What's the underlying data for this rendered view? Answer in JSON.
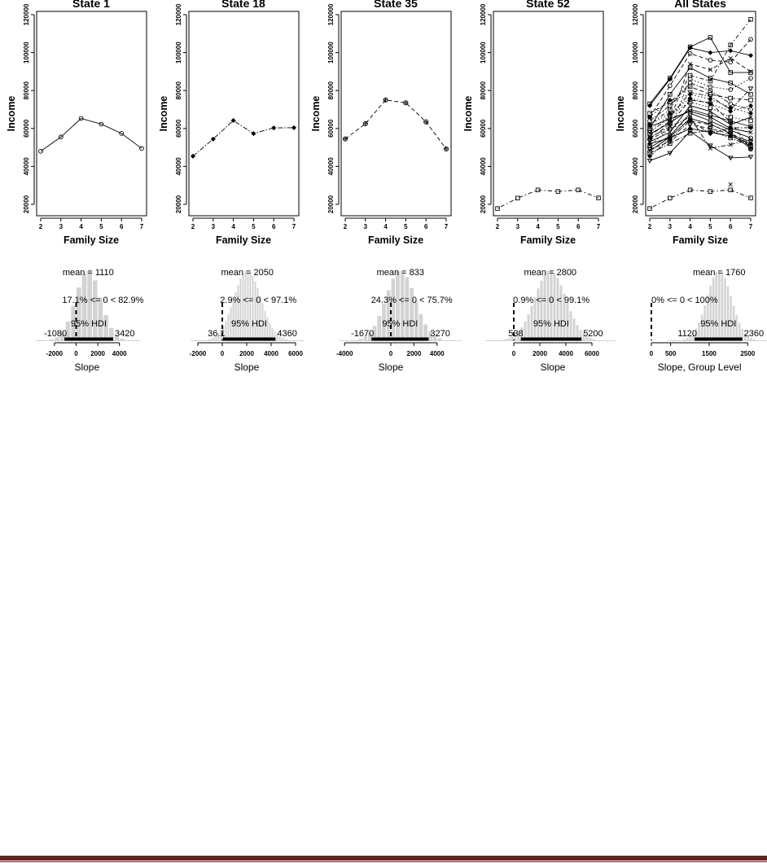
{
  "chart_data": [
    {
      "type": "line",
      "title": "State 1",
      "xlabel": "Family Size",
      "ylabel": "Income",
      "x": [
        2,
        3,
        4,
        5,
        6,
        7
      ],
      "xticks": [
        "2",
        "3",
        "4",
        "5",
        "6",
        "7"
      ],
      "yticks": [
        "20000",
        "40000",
        "60000",
        "80000",
        "100000",
        "120000"
      ],
      "ylim": [
        13000,
        122000
      ],
      "marker": "circle",
      "dash": "solid",
      "values": [
        48000,
        55500,
        65300,
        62300,
        57400,
        49500
      ]
    },
    {
      "type": "line",
      "title": "State 18",
      "xlabel": "Family Size",
      "ylabel": "Income",
      "x": [
        2,
        3,
        4,
        5,
        6,
        7
      ],
      "xticks": [
        "2",
        "3",
        "4",
        "5",
        "6",
        "7"
      ],
      "yticks": [
        "20000",
        "40000",
        "60000",
        "80000",
        "100000",
        "120000"
      ],
      "ylim": [
        13000,
        122000
      ],
      "marker": "diamond",
      "dash": "dashdot",
      "values": [
        45400,
        54400,
        64200,
        57300,
        60300,
        60400
      ]
    },
    {
      "type": "line",
      "title": "State 35",
      "xlabel": "Family Size",
      "ylabel": "Income",
      "x": [
        2,
        3,
        4,
        5,
        6,
        7
      ],
      "xticks": [
        "2",
        "3",
        "4",
        "5",
        "6",
        "7"
      ],
      "yticks": [
        "20000",
        "40000",
        "60000",
        "80000",
        "100000",
        "120000"
      ],
      "ylim": [
        13000,
        122000
      ],
      "marker": "crosscircle",
      "dash": "dashed",
      "values": [
        54500,
        62500,
        75000,
        73500,
        63500,
        49200
      ]
    },
    {
      "type": "line",
      "title": "State 52",
      "xlabel": "Family Size",
      "ylabel": "Income",
      "x": [
        2,
        3,
        4,
        5,
        6,
        7
      ],
      "xticks": [
        "2",
        "3",
        "4",
        "5",
        "6",
        "7"
      ],
      "yticks": [
        "20000",
        "40000",
        "60000",
        "80000",
        "100000",
        "120000"
      ],
      "ylim": [
        13000,
        122000
      ],
      "marker": "square",
      "dash": "dotdash",
      "values": [
        17800,
        23300,
        27600,
        26800,
        27600,
        23400
      ]
    },
    {
      "type": "line",
      "title": "All States",
      "xlabel": "Family Size",
      "ylabel": "Income",
      "x": [
        2,
        3,
        4,
        5,
        6,
        7
      ],
      "xticks": [
        "2",
        "3",
        "4",
        "5",
        "6",
        "7"
      ],
      "yticks": [
        "20000",
        "40000",
        "60000",
        "80000",
        "100000",
        "120000"
      ],
      "ylim": [
        13000,
        122000
      ],
      "series": [
        {
          "marker": "circle",
          "dash": "solid",
          "values": [
            48000,
            55500,
            65300,
            62300,
            57400,
            49500
          ]
        },
        {
          "marker": "diamond",
          "dash": "dashdot",
          "values": [
            45400,
            54400,
            64200,
            57300,
            60300,
            60400
          ]
        },
        {
          "marker": "crosscircle",
          "dash": "dashed",
          "values": [
            54500,
            62500,
            75000,
            73500,
            63500,
            49200
          ]
        },
        {
          "marker": "square",
          "dash": "dotdash",
          "values": [
            17800,
            23300,
            27600,
            26800,
            27600,
            23400
          ]
        },
        {
          "marker": "square",
          "dash": "solid",
          "values": [
            73000,
            86500,
            103000,
            108000,
            89500,
            89500
          ]
        },
        {
          "marker": "diamond",
          "dash": "solid",
          "values": [
            72000,
            86000,
            102500,
            100000,
            101000,
            98500
          ]
        },
        {
          "marker": "triangle",
          "dash": "solid",
          "values": [
            43000,
            47000,
            58500,
            51000,
            44500,
            45000
          ]
        },
        {
          "marker": "square",
          "dash": "dotdash",
          "values": [
            62000,
            70000,
            88000,
            85000,
            104000,
            117500
          ]
        },
        {
          "marker": "circle",
          "dash": "dashed",
          "values": [
            66000,
            82500,
            99500,
            96000,
            95000,
            107000
          ]
        },
        {
          "marker": "cross",
          "dash": "dashed",
          "values": [
            56000,
            64000,
            94000,
            91000,
            97000,
            90000
          ]
        },
        {
          "marker": "square",
          "dash": "solid",
          "values": [
            60000,
            78000,
            92000,
            86500,
            84000,
            78000
          ]
        },
        {
          "marker": "circle",
          "dash": "dotted",
          "values": [
            51000,
            60000,
            86000,
            82000,
            80500,
            86500
          ]
        },
        {
          "marker": "triangle",
          "dash": "dashdot",
          "values": [
            58000,
            66000,
            79000,
            77000,
            70000,
            81000
          ]
        },
        {
          "marker": "cross",
          "dash": "solid",
          "values": [
            53000,
            58000,
            72000,
            69000,
            62000,
            66000
          ]
        },
        {
          "marker": "square",
          "dash": "dashed",
          "values": [
            68000,
            74000,
            82000,
            78000,
            76000,
            75000
          ]
        },
        {
          "marker": "circle",
          "dash": "solid",
          "values": [
            50000,
            56000,
            68000,
            64000,
            59000,
            55000
          ]
        },
        {
          "marker": "diamond",
          "dash": "dotted",
          "values": [
            62000,
            68000,
            76000,
            73000,
            69000,
            72000
          ]
        },
        {
          "marker": "cross",
          "dash": "dashdot",
          "values": [
            55000,
            61000,
            66000,
            49500,
            51500,
            54000
          ]
        },
        {
          "marker": "square",
          "dash": "solid",
          "values": [
            57000,
            63000,
            70000,
            67000,
            64000,
            61000
          ]
        },
        {
          "marker": "triangle",
          "dash": "dashed",
          "values": [
            49000,
            53000,
            62000,
            60000,
            57000,
            53000
          ]
        },
        {
          "marker": "circle",
          "dash": "dashdot",
          "values": [
            64000,
            72000,
            84000,
            80000,
            73000,
            70000
          ]
        },
        {
          "marker": "diamond",
          "dash": "solid",
          "values": [
            52000,
            55000,
            60000,
            58000,
            56000,
            52000
          ]
        },
        {
          "marker": "square",
          "dash": "dotted",
          "values": [
            59000,
            67000,
            74000,
            71000,
            66000,
            64000
          ]
        },
        {
          "marker": "cross",
          "dash": "solid",
          "values": [
            61000,
            65000,
            69000,
            66000,
            60000,
            58000
          ]
        },
        {
          "marker": "circle",
          "dash": "dashed",
          "values": [
            54000,
            60000,
            64000,
            62000,
            58000,
            50500
          ]
        },
        {
          "marker": "diamond",
          "dash": "dotted",
          "values": [
            66000,
            75000,
            78000,
            75500,
            71000,
            68000
          ]
        },
        {
          "marker": "square",
          "dash": "dashdot",
          "values": [
            47000,
            52000,
            57500,
            59000,
            55000,
            51000
          ]
        },
        {
          "marker": "cross",
          "dash": "none",
          "values": [
            null,
            null,
            null,
            null,
            30500,
            null
          ]
        }
      ]
    },
    {
      "type": "histogram",
      "xlabel": "Slope",
      "xticks": [
        -2000,
        0,
        2000,
        4000
      ],
      "mean_label": "mean = 1110",
      "mean": 1110,
      "comp_label": "17.1% <= 0 < 82.9%",
      "pct_below": 0.171,
      "hdi_label": "95% HDI",
      "hdi": [
        -1080,
        3420
      ],
      "hdi_low_label": "-1080",
      "hdi_high_label": "3420",
      "bin_width": 500
    },
    {
      "type": "histogram",
      "xlabel": "Slope",
      "xticks": [
        -2000,
        0,
        2000,
        4000,
        6000
      ],
      "mean_label": "mean = 2050",
      "mean": 2050,
      "comp_label": "2.9% <= 0 < 97.1%",
      "pct_below": 0.029,
      "hdi_label": "95% HDI",
      "hdi": [
        36.1,
        4360
      ],
      "hdi_low_label": "36.1",
      "hdi_high_label": "4360",
      "bin_width": 200
    },
    {
      "type": "histogram",
      "xlabel": "Slope",
      "xticks": [
        -4000,
        0,
        2000,
        4000
      ],
      "mean_label": "mean = 833",
      "mean": 833,
      "comp_label": "24.3% <= 0 < 75.7%",
      "pct_below": 0.243,
      "hdi_label": "95% HDI",
      "hdi": [
        -1670,
        3270
      ],
      "hdi_low_label": "-1670",
      "hdi_high_label": "3270",
      "bin_width": 400
    },
    {
      "type": "histogram",
      "xlabel": "Slope",
      "xticks": [
        0,
        2000,
        4000,
        6000
      ],
      "mean_label": "mean = 2800",
      "mean": 2800,
      "comp_label": "0.9% <= 0 < 99.1%",
      "pct_below": 0.009,
      "hdi_label": "95% HDI",
      "hdi": [
        538,
        5200
      ],
      "hdi_low_label": "538",
      "hdi_high_label": "5200",
      "bin_width": 250
    },
    {
      "type": "histogram",
      "xlabel": "Slope, Group Level",
      "xticks": [
        0,
        500,
        1500,
        2500
      ],
      "mean_label": "mean = 1760",
      "mean": 1760,
      "comp_label": "0% <= 0 < 100%",
      "pct_below": 0.0,
      "hdi_label": "95% HDI",
      "hdi": [
        1120,
        2360
      ],
      "hdi_low_label": "1120",
      "hdi_high_label": "2360",
      "bin_width": 75
    }
  ],
  "colors": {
    "hist_bar": "#d3d3d3",
    "rule": "#6b2222"
  }
}
